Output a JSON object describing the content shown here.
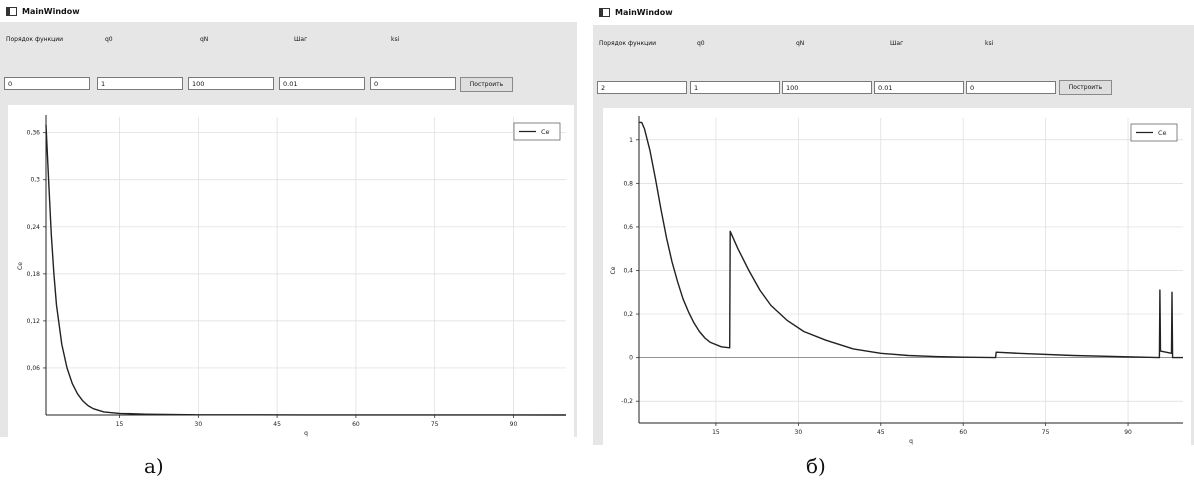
{
  "windows": [
    {
      "title": "MainWindow",
      "labels": [
        "Порядок функции",
        "q0",
        "qN",
        "Шаг",
        "ksi"
      ],
      "fields": [
        "0",
        "1",
        "100",
        "0.01",
        "0"
      ],
      "button_label": "Построить",
      "caption": "а)"
    },
    {
      "title": "MainWindow",
      "labels": [
        "Порядок функции",
        "q0",
        "qN",
        "Шаг",
        "ksi"
      ],
      "fields": [
        "2",
        "1",
        "100",
        "0.01",
        "0"
      ],
      "button_label": "Построить",
      "caption": "б)"
    }
  ],
  "chart_data": [
    {
      "type": "line",
      "xlabel": "q",
      "ylabel": "Ce",
      "xlim": [
        1,
        100
      ],
      "ylim": [
        0,
        0.38
      ],
      "x_ticks": [
        15,
        30,
        45,
        60,
        75,
        90
      ],
      "y_ticks": [
        0.06,
        0.12,
        0.18,
        0.24,
        0.3,
        0.36
      ],
      "y_tick_labels": [
        "0,06",
        "0,12",
        "0,18",
        "0,24",
        "0,3",
        "0,36"
      ],
      "grid": true,
      "legend": "top-right",
      "series": [
        {
          "name": "Ce",
          "points": [
            [
              1,
              0.37
            ],
            [
              1.5,
              0.3
            ],
            [
              2,
              0.23
            ],
            [
              2.5,
              0.18
            ],
            [
              3,
              0.14
            ],
            [
              4,
              0.09
            ],
            [
              5,
              0.06
            ],
            [
              6,
              0.04
            ],
            [
              7,
              0.027
            ],
            [
              8,
              0.018
            ],
            [
              9,
              0.012
            ],
            [
              10,
              0.008
            ],
            [
              12,
              0.004
            ],
            [
              15,
              0.002
            ],
            [
              20,
              0.001
            ],
            [
              30,
              0.0003
            ],
            [
              50,
              0.0001
            ],
            [
              100,
              0
            ]
          ]
        }
      ]
    },
    {
      "type": "line",
      "xlabel": "q",
      "ylabel": "Ce",
      "xlim": [
        1,
        100
      ],
      "ylim": [
        -0.3,
        1.1
      ],
      "x_ticks": [
        15,
        30,
        45,
        60,
        75,
        90
      ],
      "y_ticks": [
        -0.2,
        0,
        0.2,
        0.4,
        0.6,
        0.8,
        1
      ],
      "y_tick_labels": [
        "-0,2",
        "0",
        "0,2",
        "0,4",
        "0,6",
        "0,8",
        "1"
      ],
      "grid": true,
      "legend": "top-right",
      "series": [
        {
          "name": "Ce",
          "points": [
            [
              1,
              1.08
            ],
            [
              1.5,
              1.08
            ],
            [
              2,
              1.05
            ],
            [
              3,
              0.95
            ],
            [
              4,
              0.82
            ],
            [
              5,
              0.68
            ],
            [
              6,
              0.55
            ],
            [
              7,
              0.44
            ],
            [
              8,
              0.35
            ],
            [
              9,
              0.27
            ],
            [
              10,
              0.21
            ],
            [
              11,
              0.16
            ],
            [
              12,
              0.12
            ],
            [
              13,
              0.09
            ],
            [
              14,
              0.07
            ],
            [
              16,
              0.05
            ],
            [
              17.5,
              0.045
            ],
            [
              17.6,
              0.58
            ],
            [
              19,
              0.5
            ],
            [
              21,
              0.4
            ],
            [
              23,
              0.31
            ],
            [
              25,
              0.24
            ],
            [
              28,
              0.17
            ],
            [
              31,
              0.12
            ],
            [
              35,
              0.08
            ],
            [
              40,
              0.04
            ],
            [
              45,
              0.02
            ],
            [
              50,
              0.01
            ],
            [
              55,
              0.005
            ],
            [
              60,
              0.002
            ],
            [
              65.9,
              0
            ],
            [
              66,
              0.025
            ],
            [
              70,
              0.02
            ],
            [
              80,
              0.01
            ],
            [
              90,
              0.004
            ],
            [
              95.7,
              0
            ],
            [
              95.8,
              0.31
            ],
            [
              95.9,
              0.03
            ],
            [
              97.9,
              0.02
            ],
            [
              98,
              0.3
            ],
            [
              98.1,
              0
            ],
            [
              100,
              0
            ]
          ]
        }
      ]
    }
  ]
}
